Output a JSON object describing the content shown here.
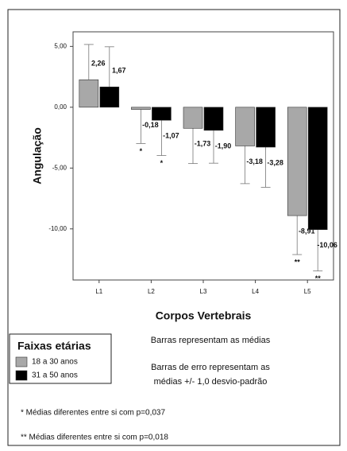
{
  "chart_data": {
    "type": "bar",
    "x_label": "Corpos Vertebrais",
    "y_label": "Angulação",
    "categories": [
      "L1",
      "L2",
      "L3",
      "L4",
      "L5"
    ],
    "series": [
      {
        "name": "18 a 30 anos",
        "color": "#a8a8a8",
        "values": [
          2.26,
          -0.18,
          -1.73,
          -3.18,
          -8.91
        ],
        "value_labels": [
          "2,26",
          "-0,18",
          "-1,73",
          "-3,18",
          "-8,91"
        ],
        "errors": [
          2.9,
          2.8,
          2.9,
          3.1,
          3.2
        ],
        "markers": [
          null,
          "*",
          null,
          null,
          "**"
        ]
      },
      {
        "name": "31 a 50 anos",
        "color": "#000000",
        "values": [
          1.67,
          -1.07,
          -1.9,
          -3.28,
          -10.06
        ],
        "value_labels": [
          "1,67",
          "-1,07",
          "-1,90",
          "-3,28",
          "-10,06"
        ],
        "errors": [
          3.3,
          2.9,
          2.7,
          3.3,
          3.4
        ],
        "markers": [
          null,
          "*",
          null,
          null,
          "**"
        ]
      }
    ],
    "ylim": [
      -14.2,
      6.2
    ],
    "yticks": [
      {
        "value": 5,
        "label": "5,00"
      },
      {
        "value": 0,
        "label": "0,00"
      },
      {
        "value": -5,
        "label": "-5,00"
      },
      {
        "value": -10,
        "label": "-10,00"
      }
    ],
    "legend_title": "Faixas etárias",
    "notes": [
      "Barras representam as médias",
      "Barras de erro representam as",
      "médias +/- 1,0 desvio-padrão"
    ],
    "footnotes": [
      "* Médias diferentes entre si com p=0,037",
      "** Médias diferentes entre si com p=0,018"
    ]
  }
}
